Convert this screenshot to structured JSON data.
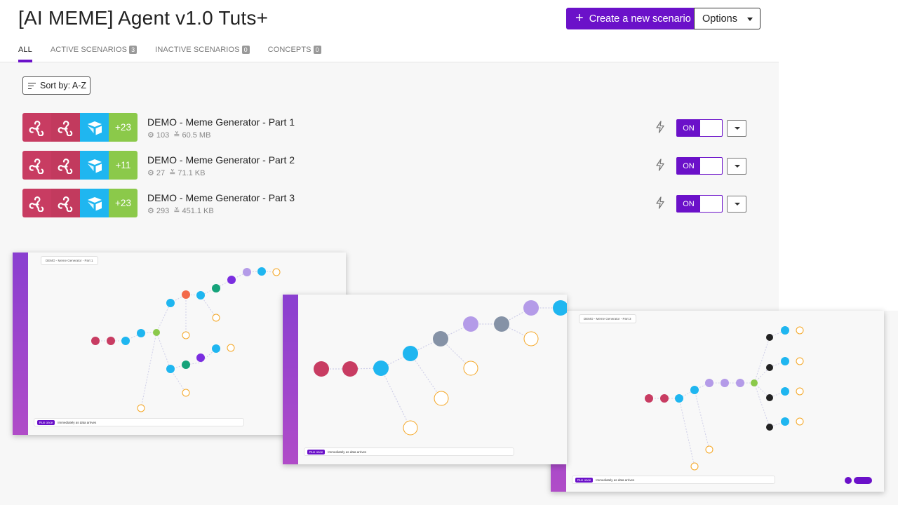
{
  "header": {
    "title": "[AI MEME] Agent v1.0 Tuts+",
    "create_label": "Create a new scenario",
    "options_label": "Options"
  },
  "tabs": [
    {
      "label": "ALL",
      "count": ""
    },
    {
      "label": "ACTIVE SCENARIOS",
      "count": "3"
    },
    {
      "label": "INACTIVE SCENARIOS",
      "count": "0"
    },
    {
      "label": "CONCEPTS",
      "count": "0"
    }
  ],
  "sort": {
    "label": "Sort by: A-Z"
  },
  "scenarios": [
    {
      "title": "DEMO - Meme Generator - Part 1",
      "more": "+23",
      "ops": "103",
      "size": "60.5 MB",
      "toggle": "ON"
    },
    {
      "title": "DEMO - Meme Generator - Part 2",
      "more": "+11",
      "ops": "27",
      "size": "71.1 KB",
      "toggle": "ON"
    },
    {
      "title": "DEMO - Meme Generator - Part 3",
      "more": "+23",
      "ops": "293",
      "size": "451.1 KB",
      "toggle": "ON"
    }
  ],
  "previews": [
    {
      "crumb": "DEMO - Meme Generator - Part 1",
      "run": "Run once",
      "schedule": "Immediately as data arrives"
    },
    {
      "crumb": "",
      "run": "Run once",
      "schedule": "Immediately as data arrives"
    },
    {
      "crumb": "DEMO - Meme Generator - Part 3",
      "run": "Run once",
      "schedule": "Immediately as data arrives"
    }
  ],
  "colors": {
    "accent": "#6b11c9",
    "webhook": "#c83c62",
    "airtable": "#1fb6f0",
    "more": "#8bc94a"
  }
}
